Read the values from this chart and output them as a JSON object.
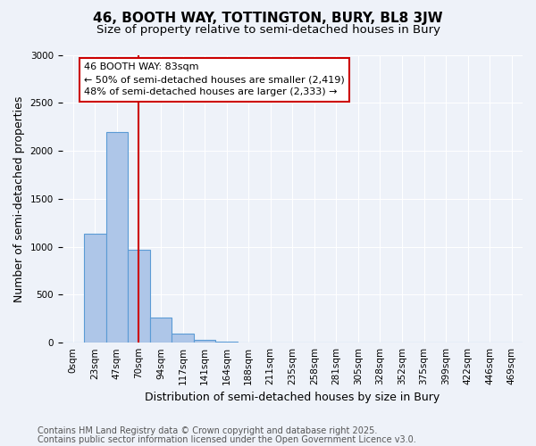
{
  "title": "46, BOOTH WAY, TOTTINGTON, BURY, BL8 3JW",
  "subtitle": "Size of property relative to semi-detached houses in Bury",
  "xlabel": "Distribution of semi-detached houses by size in Bury",
  "ylabel": "Number of semi-detached properties",
  "bin_labels": [
    "0sqm",
    "23sqm",
    "47sqm",
    "70sqm",
    "94sqm",
    "117sqm",
    "141sqm",
    "164sqm",
    "188sqm",
    "211sqm",
    "235sqm",
    "258sqm",
    "281sqm",
    "305sqm",
    "328sqm",
    "352sqm",
    "375sqm",
    "399sqm",
    "422sqm",
    "446sqm",
    "469sqm"
  ],
  "bar_values": [
    0,
    1140,
    2200,
    970,
    265,
    95,
    25,
    8,
    2,
    0,
    0,
    0,
    0,
    0,
    0,
    0,
    0,
    0,
    0,
    0,
    0
  ],
  "bar_color": "#aec6e8",
  "bar_edge_color": "#5b9bd5",
  "ylim": [
    0,
    3000
  ],
  "yticks": [
    0,
    500,
    1000,
    1500,
    2000,
    2500,
    3000
  ],
  "red_line_x": 3,
  "annotation_title": "46 BOOTH WAY: 83sqm",
  "annotation_line1": "← 50% of semi-detached houses are smaller (2,419)",
  "annotation_line2": "48% of semi-detached houses are larger (2,333) →",
  "footer_line1": "Contains HM Land Registry data © Crown copyright and database right 2025.",
  "footer_line2": "Contains public sector information licensed under the Open Government Licence v3.0.",
  "background_color": "#eef2f9",
  "plot_bg_color": "#eef2f9",
  "annotation_box_color": "#ffffff",
  "annotation_box_edge": "#cc0000",
  "red_line_color": "#cc0000",
  "title_fontsize": 11,
  "subtitle_fontsize": 9.5,
  "axis_label_fontsize": 9,
  "tick_fontsize": 7.5,
  "annotation_fontsize": 8,
  "footer_fontsize": 7
}
